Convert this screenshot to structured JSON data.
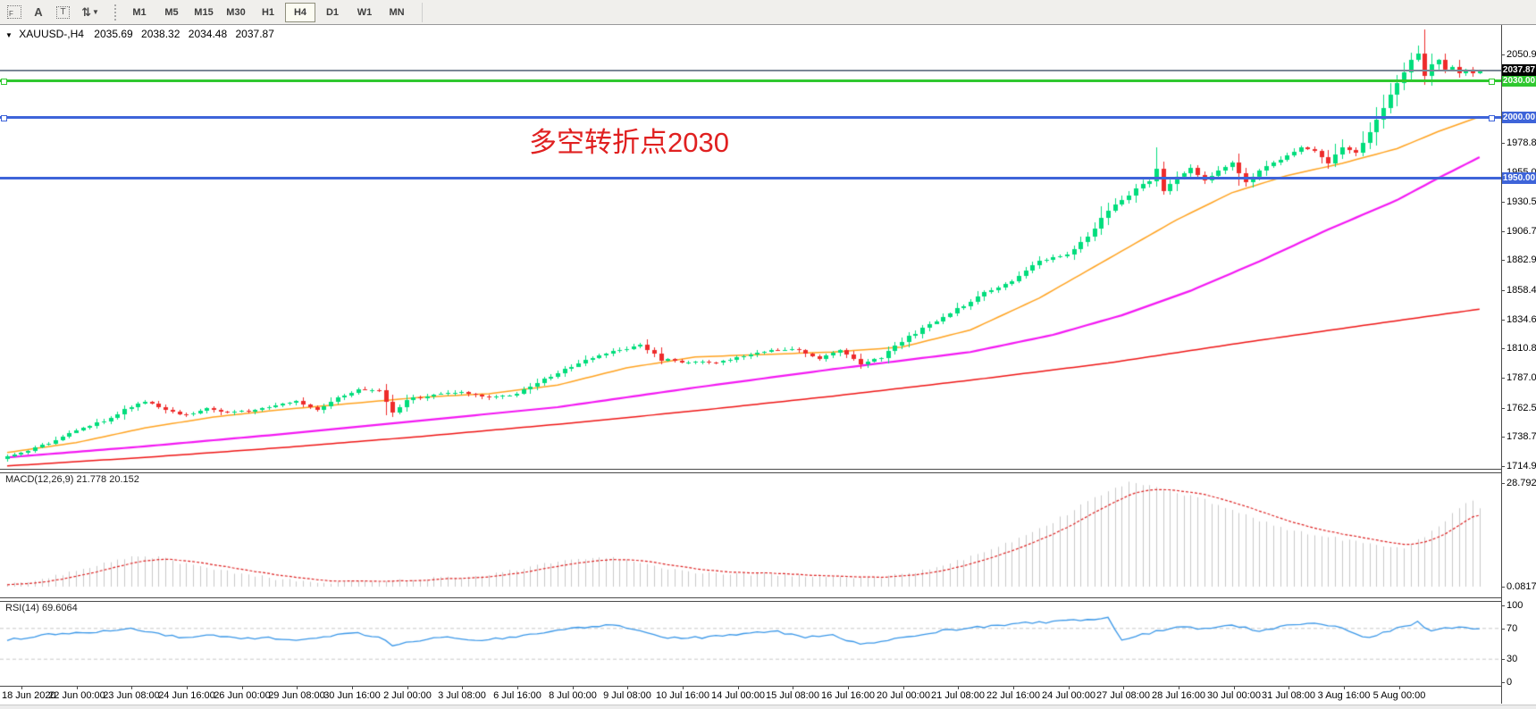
{
  "toolbar": {
    "icons": [
      {
        "name": "frame-f-icon",
        "glyph": "F"
      },
      {
        "name": "text-annotation-icon",
        "glyph": "A"
      },
      {
        "name": "text-label-icon",
        "glyph": "T"
      },
      {
        "name": "cycle-arrows-icon",
        "glyph": "⇅"
      },
      {
        "name": "dropdown-caret-icon",
        "glyph": "▼"
      }
    ],
    "timeframes": [
      "M1",
      "M5",
      "M15",
      "M30",
      "H1",
      "H4",
      "D1",
      "W1",
      "MN"
    ],
    "active_timeframe": "H4"
  },
  "header": {
    "dropdown_glyph": "▼",
    "symbol_period": "XAUUSD-,H4",
    "open": "2035.69",
    "high": "2038.32",
    "low": "2034.48",
    "close": "2037.87"
  },
  "annotation": {
    "text": "多空转折点2030",
    "color": "#e02020"
  },
  "price_axis": {
    "labels": [
      "2050.90",
      "2027.10",
      "1978.80",
      "1955.00",
      "1930.50",
      "1906.70",
      "1882.90",
      "1858.40",
      "1834.60",
      "1810.80",
      "1787.00",
      "1762.50",
      "1738.70",
      "1714.90"
    ],
    "current_price_label": "2037.87"
  },
  "hlines": [
    {
      "label": "2030.00",
      "price": 2030,
      "color": "#2fc82f",
      "handles": true
    },
    {
      "label": "2000.00",
      "price": 2000,
      "color": "#3e64d9",
      "handles": true
    },
    {
      "label": "1950.00",
      "price": 1950,
      "color": "#3e64d9",
      "handles": false
    }
  ],
  "macd": {
    "label": "MACD(12,26,9)",
    "value_main": "21.778",
    "value_signal": "20.152",
    "axis_top": "28.792",
    "axis_bottom": "0.0817"
  },
  "rsi": {
    "label": "RSI(14)",
    "value": "69.6064",
    "axis": [
      "100",
      "70",
      "30",
      "0"
    ]
  },
  "time_axis": {
    "labels": [
      "18 Jun 2020",
      "22 Jun 00:00",
      "23 Jun 08:00",
      "24 Jun 16:00",
      "26 Jun 00:00",
      "29 Jun 08:00",
      "30 Jun 16:00",
      "2 Jul 00:00",
      "3 Jul 08:00",
      "6 Jul 16:00",
      "8 Jul 00:00",
      "9 Jul 08:00",
      "10 Jul 16:00",
      "14 Jul 00:00",
      "15 Jul 08:00",
      "16 Jul 16:00",
      "20 Jul 00:00",
      "21 Jul 08:00",
      "22 Jul 16:00",
      "24 Jul 00:00",
      "27 Jul 08:00",
      "28 Jul 16:00",
      "30 Jul 00:00",
      "31 Jul 08:00",
      "3 Aug 16:00",
      "5 Aug 00:00"
    ]
  },
  "colors": {
    "bull": "#00dd7c",
    "bear": "#ee2b2b",
    "ma_fast": "#ffa21f",
    "ma_mid": "#f318f3",
    "ma_slow": "#ee1515",
    "current_price_line": "#7a8796",
    "current_price_box": "#000000",
    "macd_hist": "#c8c8c8",
    "macd_signal": "#dd2222",
    "rsi_line": "#3a97e8",
    "rsi_levels": "#c8c8c8",
    "hline_green": "#2fc82f",
    "hline_blue": "#3e64d9"
  },
  "chart_data": {
    "type": "candlestick",
    "symbol": "XAUUSD-",
    "timeframe": "H4",
    "title": "XAUUSD-,H4 2035.69 2038.32 2034.48 2037.87",
    "bars": 215,
    "visible_price_range": [
      1714.9,
      2062.0
    ],
    "x_range": [
      "18 Jun 2020",
      "6 Aug 2020"
    ],
    "last_bar": {
      "open": 2035.69,
      "high": 2038.32,
      "low": 2034.48,
      "close": 2037.87
    },
    "close_anchors": [
      [
        0,
        1724
      ],
      [
        3,
        1727
      ],
      [
        6,
        1734
      ],
      [
        9,
        1741
      ],
      [
        12,
        1748
      ],
      [
        15,
        1754
      ],
      [
        18,
        1764
      ],
      [
        20,
        1768
      ],
      [
        23,
        1760
      ],
      [
        26,
        1757
      ],
      [
        29,
        1762
      ],
      [
        32,
        1758
      ],
      [
        35,
        1760
      ],
      [
        38,
        1764
      ],
      [
        42,
        1768
      ],
      [
        45,
        1761
      ],
      [
        48,
        1770
      ],
      [
        51,
        1778
      ],
      [
        54,
        1776
      ],
      [
        56,
        1758
      ],
      [
        58,
        1769
      ],
      [
        62,
        1773
      ],
      [
        66,
        1775
      ],
      [
        70,
        1771
      ],
      [
        74,
        1774
      ],
      [
        78,
        1786
      ],
      [
        82,
        1796
      ],
      [
        86,
        1806
      ],
      [
        90,
        1811
      ],
      [
        92,
        1814
      ],
      [
        95,
        1802
      ],
      [
        98,
        1800
      ],
      [
        102,
        1799
      ],
      [
        106,
        1803
      ],
      [
        110,
        1809
      ],
      [
        114,
        1811
      ],
      [
        118,
        1803
      ],
      [
        121,
        1810
      ],
      [
        124,
        1798
      ],
      [
        127,
        1804
      ],
      [
        130,
        1817
      ],
      [
        134,
        1830
      ],
      [
        138,
        1843
      ],
      [
        142,
        1856
      ],
      [
        146,
        1866
      ],
      [
        150,
        1882
      ],
      [
        154,
        1888
      ],
      [
        157,
        1902
      ],
      [
        160,
        1924
      ],
      [
        162,
        1932
      ],
      [
        164,
        1941
      ],
      [
        166,
        1948
      ],
      [
        167,
        1958
      ],
      [
        168,
        1940
      ],
      [
        170,
        1951
      ],
      [
        172,
        1958
      ],
      [
        174,
        1948
      ],
      [
        176,
        1955
      ],
      [
        178,
        1963
      ],
      [
        180,
        1946
      ],
      [
        182,
        1956
      ],
      [
        186,
        1969
      ],
      [
        188,
        1975
      ],
      [
        190,
        1971
      ],
      [
        192,
        1962
      ],
      [
        194,
        1976
      ],
      [
        196,
        1971
      ],
      [
        198,
        1988
      ],
      [
        200,
        2008
      ],
      [
        202,
        2028
      ],
      [
        204,
        2046
      ],
      [
        205,
        2052
      ],
      [
        206,
        2034
      ],
      [
        207,
        2043
      ],
      [
        208,
        2046
      ],
      [
        209,
        2038
      ],
      [
        210,
        2041
      ],
      [
        211,
        2036
      ],
      [
        212,
        2039
      ],
      [
        213,
        2035
      ],
      [
        214,
        2037.87
      ]
    ],
    "wick_overrides": {
      "56": {
        "low": 1755
      },
      "167": {
        "high": 1975
      },
      "168": {
        "low": 1936
      },
      "204": {
        "high": 2052
      },
      "205": {
        "high": 2058
      }
    },
    "ma_fast_anchors": [
      [
        0,
        1726
      ],
      [
        10,
        1734
      ],
      [
        20,
        1746
      ],
      [
        30,
        1755
      ],
      [
        40,
        1761
      ],
      [
        50,
        1766
      ],
      [
        60,
        1771
      ],
      [
        70,
        1774
      ],
      [
        80,
        1781
      ],
      [
        90,
        1795
      ],
      [
        100,
        1804
      ],
      [
        110,
        1806
      ],
      [
        120,
        1808
      ],
      [
        130,
        1812
      ],
      [
        140,
        1826
      ],
      [
        150,
        1852
      ],
      [
        160,
        1884
      ],
      [
        170,
        1916
      ],
      [
        178,
        1938
      ],
      [
        186,
        1952
      ],
      [
        194,
        1962
      ],
      [
        202,
        1974
      ],
      [
        208,
        1988
      ],
      [
        214,
        2000
      ]
    ],
    "ma_mid_anchors": [
      [
        0,
        1722
      ],
      [
        20,
        1731
      ],
      [
        40,
        1741
      ],
      [
        60,
        1752
      ],
      [
        80,
        1763
      ],
      [
        100,
        1779
      ],
      [
        120,
        1794
      ],
      [
        140,
        1808
      ],
      [
        152,
        1822
      ],
      [
        162,
        1838
      ],
      [
        172,
        1858
      ],
      [
        182,
        1882
      ],
      [
        192,
        1908
      ],
      [
        202,
        1932
      ],
      [
        208,
        1950
      ],
      [
        214,
        1967
      ]
    ],
    "ma_slow_anchors": [
      [
        0,
        1715
      ],
      [
        20,
        1722
      ],
      [
        40,
        1730
      ],
      [
        60,
        1739
      ],
      [
        80,
        1749
      ],
      [
        100,
        1760
      ],
      [
        120,
        1772
      ],
      [
        140,
        1785
      ],
      [
        160,
        1799
      ],
      [
        180,
        1816
      ],
      [
        200,
        1832
      ],
      [
        214,
        1843
      ]
    ],
    "macd": {
      "params": [
        12,
        26,
        9
      ],
      "current_main": 21.778,
      "current_signal": 20.152,
      "axis_max": 28.792,
      "axis_min": 0.0817,
      "hist_anchors": [
        [
          0,
          0.6
        ],
        [
          6,
          2.5
        ],
        [
          12,
          5.5
        ],
        [
          18,
          8.5
        ],
        [
          22,
          8.0
        ],
        [
          28,
          5.5
        ],
        [
          34,
          3.5
        ],
        [
          40,
          2.0
        ],
        [
          46,
          1.2
        ],
        [
          52,
          1.5
        ],
        [
          58,
          1.8
        ],
        [
          64,
          2.5
        ],
        [
          70,
          3.5
        ],
        [
          76,
          5.5
        ],
        [
          82,
          7.5
        ],
        [
          87,
          8.2
        ],
        [
          92,
          6.5
        ],
        [
          98,
          4.5
        ],
        [
          104,
          3.2
        ],
        [
          110,
          3.6
        ],
        [
          116,
          2.8
        ],
        [
          122,
          2.2
        ],
        [
          127,
          2.6
        ],
        [
          132,
          4.0
        ],
        [
          137,
          6.5
        ],
        [
          142,
          9.5
        ],
        [
          147,
          13.5
        ],
        [
          152,
          18.0
        ],
        [
          156,
          22.5
        ],
        [
          160,
          26.5
        ],
        [
          163,
          28.8
        ],
        [
          166,
          28.0
        ],
        [
          170,
          26.0
        ],
        [
          174,
          24.0
        ],
        [
          178,
          21.5
        ],
        [
          182,
          18.5
        ],
        [
          186,
          16.0
        ],
        [
          190,
          14.5
        ],
        [
          194,
          13.2
        ],
        [
          199,
          11.8
        ],
        [
          203,
          11.0
        ],
        [
          206,
          14.0
        ],
        [
          209,
          18.5
        ],
        [
          212,
          23.5
        ],
        [
          213,
          24.0
        ],
        [
          214,
          21.8
        ]
      ]
    },
    "rsi": {
      "period": 14,
      "current": 69.6064,
      "levels": [
        70,
        30
      ],
      "axis_range": [
        0,
        100
      ],
      "anchors": [
        [
          0,
          55
        ],
        [
          6,
          62
        ],
        [
          12,
          65
        ],
        [
          18,
          70
        ],
        [
          22,
          63
        ],
        [
          26,
          58
        ],
        [
          30,
          61
        ],
        [
          34,
          56
        ],
        [
          38,
          59
        ],
        [
          42,
          53
        ],
        [
          46,
          58
        ],
        [
          50,
          65
        ],
        [
          54,
          59
        ],
        [
          56,
          47
        ],
        [
          60,
          55
        ],
        [
          64,
          59
        ],
        [
          68,
          54
        ],
        [
          72,
          57
        ],
        [
          76,
          63
        ],
        [
          80,
          68
        ],
        [
          84,
          72
        ],
        [
          88,
          74
        ],
        [
          92,
          67
        ],
        [
          96,
          57
        ],
        [
          100,
          58
        ],
        [
          104,
          60
        ],
        [
          108,
          64
        ],
        [
          112,
          66
        ],
        [
          116,
          58
        ],
        [
          120,
          62
        ],
        [
          124,
          49
        ],
        [
          128,
          54
        ],
        [
          132,
          61
        ],
        [
          136,
          67
        ],
        [
          140,
          71
        ],
        [
          144,
          74
        ],
        [
          148,
          77
        ],
        [
          152,
          79
        ],
        [
          156,
          81
        ],
        [
          160,
          83
        ],
        [
          162,
          56
        ],
        [
          166,
          64
        ],
        [
          170,
          72
        ],
        [
          174,
          69
        ],
        [
          178,
          74
        ],
        [
          182,
          67
        ],
        [
          186,
          74
        ],
        [
          190,
          77
        ],
        [
          194,
          70
        ],
        [
          196,
          62
        ],
        [
          198,
          58
        ],
        [
          202,
          70
        ],
        [
          205,
          78
        ],
        [
          207,
          66
        ],
        [
          209,
          71
        ],
        [
          211,
          72
        ],
        [
          213,
          70
        ],
        [
          214,
          69.6
        ]
      ]
    }
  }
}
